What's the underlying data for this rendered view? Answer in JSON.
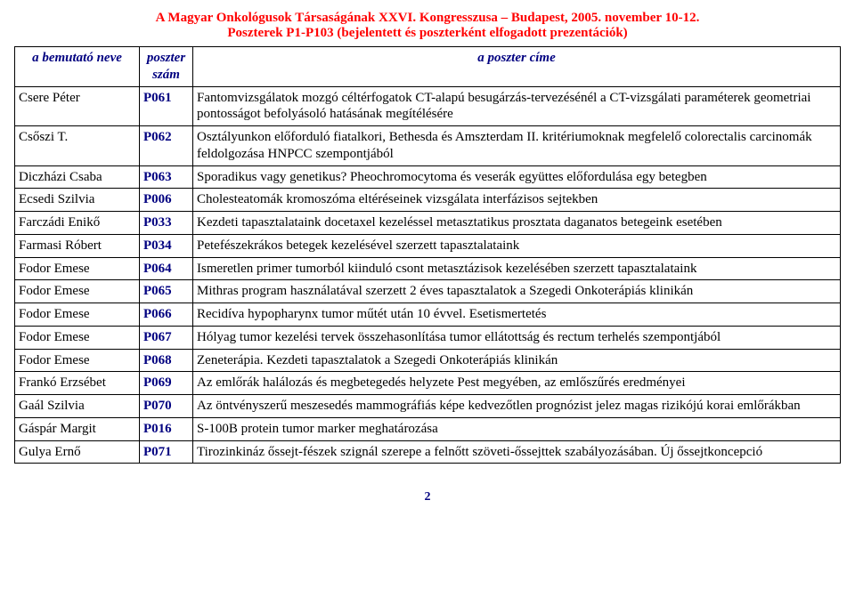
{
  "header": {
    "line1": "A Magyar Onkológusok Társaságának XXVI. Kongresszusa – Budapest, 2005. november 10-12.",
    "line2": "Poszterek  P1-P103  (bejelentett és poszterként elfogadott prezentációk)"
  },
  "colors": {
    "header_text": "#ff0000",
    "th_text": "#000080",
    "pnum_text": "#000080",
    "border": "#000000",
    "background": "#ffffff"
  },
  "columns": {
    "presenter": "a bemutató neve",
    "pnum": "poszter szám",
    "title": "a poszter címe"
  },
  "rows": [
    {
      "presenter": "Csere Péter",
      "pnum": "P061",
      "title": "Fantomvizsgálatok mozgó céltérfogatok CT-alapú  besugárzás-tervezésénél a CT-vizsgálati paraméterek geometriai pontosságot befolyásoló hatásának megítélésére"
    },
    {
      "presenter": "Csőszi T.",
      "pnum": "P062",
      "title": "Osztályunkon előforduló fiatalkori, Bethesda és Amszterdam II. kritériumoknak megfelelő colorectalis carcinomák feldolgozása HNPCC szempontjából"
    },
    {
      "presenter": "Diczházi Csaba",
      "pnum": "P063",
      "title": "Sporadikus vagy genetikus? Pheochromocytoma és veserák együttes előfordulása egy betegben"
    },
    {
      "presenter": "Ecsedi Szilvia",
      "pnum": "P006",
      "title": "Cholesteatomák kromoszóma eltéréseinek vizsgálata interfázisos sejtekben"
    },
    {
      "presenter": "Farczádi Enikő",
      "pnum": "P033",
      "title": "Kezdeti tapasztalataink docetaxel kezeléssel  metasztatikus prosztata daganatos betegeink esetében"
    },
    {
      "presenter": "Farmasi Róbert",
      "pnum": "P034",
      "title": "Petefészekrákos betegek kezelésével szerzett tapasztalataink"
    },
    {
      "presenter": "Fodor Emese",
      "pnum": "P064",
      "title": "Ismeretlen primer tumorból kiinduló csont metasztázisok kezelésében szerzett tapasztalataink"
    },
    {
      "presenter": "Fodor Emese",
      "pnum": "P065",
      "title": "Mithras program használatával szerzett 2 éves tapasztalatok a Szegedi Onkoterápiás klinikán"
    },
    {
      "presenter": "Fodor Emese",
      "pnum": "P066",
      "title": "Recidíva hypopharynx tumor műtét után 10 évvel. Esetismertetés"
    },
    {
      "presenter": "Fodor Emese",
      "pnum": "P067",
      "title": "Hólyag tumor kezelési tervek összehasonlítása tumor ellátottság és rectum terhelés szempontjából"
    },
    {
      "presenter": "Fodor Emese",
      "pnum": "P068",
      "title": "Zeneterápia. Kezdeti tapasztalatok a Szegedi Onkoterápiás klinikán"
    },
    {
      "presenter": "Frankó Erzsébet",
      "pnum": "P069",
      "title": "Az emlőrák halálozás és megbetegedés helyzete Pest megyében, az emlőszűrés eredményei"
    },
    {
      "presenter": "Gaál Szilvia",
      "pnum": "P070",
      "title": "Az öntvényszerű meszesedés mammográfiás képe kedvezőtlen prognózist jelez magas rizikójú korai emlőrákban"
    },
    {
      "presenter": "Gáspár Margit",
      "pnum": "P016",
      "title": "S-100B protein tumor marker meghatározása"
    },
    {
      "presenter": "Gulya Ernő",
      "pnum": "P071",
      "title": "Tirozinkináz őssejt-fészek szignál szerepe a felnőtt szöveti-őssejttek szabályozásában. Új őssejtkoncepció"
    }
  ],
  "page_number": "2"
}
